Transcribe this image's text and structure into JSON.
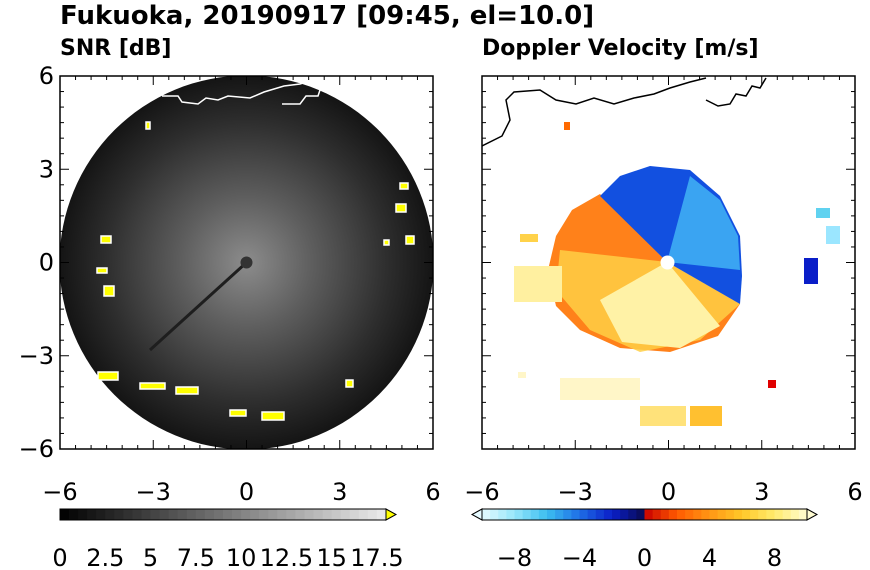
{
  "figure": {
    "title": "Fukuoka, 20190917 [09:45, el=10.0]"
  },
  "chart_data": [
    {
      "type": "heatmap",
      "title": "SNR [dB]",
      "xlim": [
        -6,
        6
      ],
      "ylim": [
        -6,
        6
      ],
      "xticks": [
        "−6",
        "−3",
        "0",
        "3",
        "6"
      ],
      "yticks": [
        "6",
        "3",
        "0",
        "−3",
        "−6"
      ],
      "grid": false,
      "colorbar": {
        "range": [
          0,
          18
        ],
        "step": 0.5,
        "tick_labels": [
          "0",
          "2.5",
          "5",
          "7.5",
          "10",
          "12.5",
          "15",
          "17.5"
        ],
        "extend": "max",
        "extend_color": "#ffff00"
      },
      "features": {
        "echo_range_radius": 6,
        "center_blank_radius": 0.2,
        "strong_echo_color": "#ffff00"
      }
    },
    {
      "type": "heatmap",
      "title": "Doppler Velocity [m/s]",
      "xlim": [
        -6,
        6
      ],
      "ylim": [
        -6,
        6
      ],
      "xticks": [
        "−6",
        "−3",
        "0",
        "3",
        "6"
      ],
      "yticks": [],
      "grid": false,
      "colorbar": {
        "range": [
          -10,
          10
        ],
        "step": 0.5,
        "tick_labels": [
          "−8",
          "−4",
          "0",
          "4",
          "8"
        ],
        "extend": "both"
      },
      "features": {
        "approaching_color": "#0a32c8",
        "receding_color": "#ff6a00",
        "center_blank_radius": 0.2
      }
    }
  ]
}
